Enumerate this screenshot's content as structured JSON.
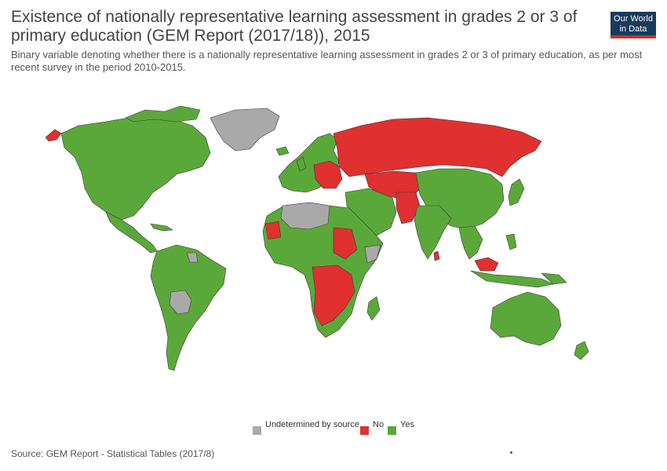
{
  "title": "Existence of nationally representative learning assessment in grades 2 or 3 of primary education (GEM Report (2017/18)), 2015",
  "subtitle": "Binary variable denoting whether there is a nationally representative learning assessment in grades 2 or 3 of primary education, as per most recent survey in the period 2010-2015.",
  "logo": {
    "line1": "Our World",
    "line2": "in Data"
  },
  "legend": [
    {
      "label": "Undetermined by source",
      "color": "#a9a9a9"
    },
    {
      "label": "No",
      "color": "#e03030"
    },
    {
      "label": "Yes",
      "color": "#5ba83a"
    }
  ],
  "source": "Source: GEM Report - Statistical Tables (2017/8)",
  "colors": {
    "yes": "#5ba83a",
    "no": "#e03030",
    "undetermined": "#a9a9a9",
    "border": "#3a3a3a"
  }
}
